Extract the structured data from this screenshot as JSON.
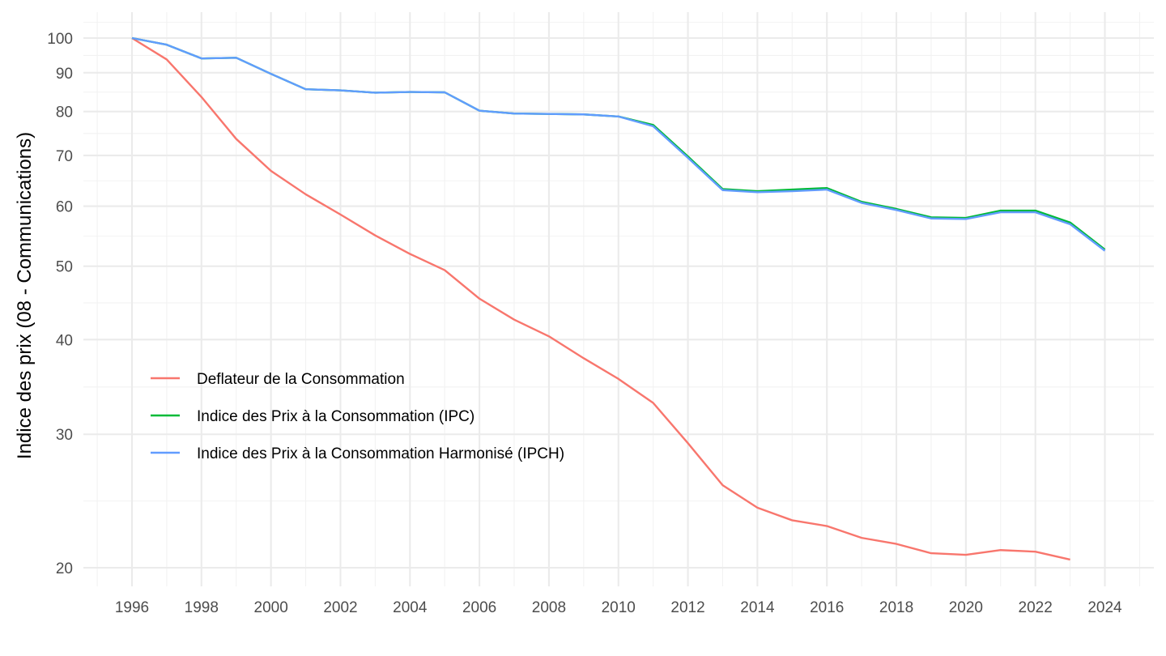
{
  "chart_data": {
    "type": "line",
    "title": "",
    "xlabel": "",
    "ylabel": "Indice des prix (08 - Communications)",
    "y_scale": "log",
    "xlim": [
      1995,
      2025
    ],
    "ylim": [
      19,
      105
    ],
    "x_ticks": [
      1996,
      1998,
      2000,
      2002,
      2004,
      2006,
      2008,
      2010,
      2012,
      2014,
      2016,
      2018,
      2020,
      2022,
      2024
    ],
    "x_tick_labels": [
      "1996",
      "1998",
      "2000",
      "2002",
      "2004",
      "2006",
      "2008",
      "2010",
      "2012",
      "2014",
      "2016",
      "2018",
      "2020",
      "2022",
      "2024"
    ],
    "y_ticks": [
      20,
      30,
      40,
      50,
      60,
      70,
      80,
      90,
      100
    ],
    "y_tick_labels": [
      "20",
      "30",
      "40",
      "50",
      "60",
      "70",
      "80",
      "90",
      "100"
    ],
    "grid": true,
    "legend_position": "inside-bottom-left",
    "series": [
      {
        "name": "Deflateur de la Consommation",
        "color": "#F8766D",
        "x": [
          1996,
          1997,
          1998,
          1999,
          2000,
          2001,
          2002,
          2003,
          2004,
          2005,
          2006,
          2007,
          2008,
          2009,
          2010,
          2011,
          2012,
          2013,
          2014,
          2015,
          2016,
          2017,
          2018,
          2019,
          2020,
          2021,
          2022,
          2023
        ],
        "values": [
          100,
          93.7,
          83.6,
          73.6,
          66.8,
          62.2,
          58.5,
          54.9,
          51.9,
          49.4,
          45.3,
          42.5,
          40.4,
          37.8,
          35.5,
          33.0,
          29.2,
          25.7,
          24.0,
          23.1,
          22.7,
          21.9,
          21.5,
          20.9,
          20.8,
          21.1,
          21.0,
          20.5
        ]
      },
      {
        "name": "Indice des Prix à la Consommation (IPC)",
        "color": "#00BA38",
        "x": [
          1996,
          1997,
          1998,
          1999,
          2000,
          2001,
          2002,
          2003,
          2004,
          2005,
          2006,
          2007,
          2008,
          2009,
          2010,
          2011,
          2012,
          2013,
          2014,
          2015,
          2016,
          2017,
          2018,
          2019,
          2020,
          2021,
          2022,
          2023,
          2024
        ],
        "values": [
          100,
          98.0,
          94.0,
          94.2,
          89.7,
          85.6,
          85.3,
          84.7,
          84.9,
          84.8,
          80.2,
          79.5,
          79.4,
          79.3,
          78.8,
          76.8,
          69.8,
          63.2,
          62.8,
          63.1,
          63.4,
          60.8,
          59.5,
          58.0,
          57.9,
          59.2,
          59.2,
          57.1,
          52.6
        ]
      },
      {
        "name": "Indice des Prix à la Consommation Harmonisé (IPCH)",
        "color": "#619CFF",
        "x": [
          1996,
          1997,
          1998,
          1999,
          2000,
          2001,
          2002,
          2003,
          2004,
          2005,
          2006,
          2007,
          2008,
          2009,
          2010,
          2011,
          2012,
          2013,
          2014,
          2015,
          2016,
          2017,
          2018,
          2019,
          2020,
          2021,
          2022,
          2023,
          2024
        ],
        "values": [
          100,
          98.0,
          94.0,
          94.2,
          89.7,
          85.6,
          85.3,
          84.7,
          84.9,
          84.8,
          80.2,
          79.5,
          79.4,
          79.3,
          78.8,
          76.5,
          69.5,
          63.0,
          62.6,
          62.8,
          63.1,
          60.6,
          59.3,
          57.8,
          57.7,
          58.9,
          58.9,
          56.8,
          52.4
        ]
      }
    ]
  }
}
